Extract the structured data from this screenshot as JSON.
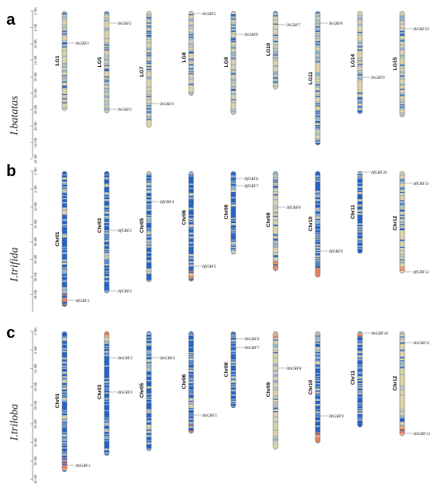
{
  "panels": [
    {
      "letter": "a",
      "species": "I.batatas",
      "scale_ticks": [
        "0 Mb",
        "5 Mb",
        "10 Mb",
        "15 Mb",
        "20 Mb",
        "25 Mb",
        "30 Mb",
        "35 Mb",
        "40 Mb",
        "45 Mb"
      ],
      "chromosomes": [
        {
          "name": "LG1",
          "genes": [
            "IbGRF1"
          ]
        },
        {
          "name": "LG5",
          "genes": [
            "IbGRF2",
            "IbGRF3"
          ]
        },
        {
          "name": "LG7",
          "genes": [
            "IbGRF4"
          ]
        },
        {
          "name": "LG8",
          "genes": [
            "IbGRF5"
          ]
        },
        {
          "name": "LG9",
          "genes": [
            "IbGRF6"
          ]
        },
        {
          "name": "LG10",
          "genes": [
            "IbGRF7"
          ]
        },
        {
          "name": "LG11",
          "genes": [
            "IbGRF8"
          ]
        },
        {
          "name": "LG14",
          "genes": [
            "IbGRF9"
          ]
        },
        {
          "name": "LG15",
          "genes": [
            "IbGRF10"
          ]
        }
      ]
    },
    {
      "letter": "b",
      "species": "I.trifida",
      "scale_ticks": [
        "0 Mb",
        "5 Mb",
        "10 Mb",
        "15 Mb",
        "20 Mb",
        "25 Mb",
        "30 Mb",
        "35 Mb"
      ],
      "chromosomes": [
        {
          "name": "Chr01",
          "genes": [
            "ItfGRF1"
          ]
        },
        {
          "name": "Chr03",
          "genes": [
            "ItfGRF2",
            "ItfGRF3"
          ]
        },
        {
          "name": "Chr05",
          "genes": [
            "ItfGRF4"
          ]
        },
        {
          "name": "Chr06",
          "genes": [
            "ItfGRF5"
          ]
        },
        {
          "name": "Chr08",
          "genes": [
            "ItfGRF6",
            "ItfGRF7"
          ]
        },
        {
          "name": "Chr09",
          "genes": [
            "ItfGRF8"
          ]
        },
        {
          "name": "Chr10",
          "genes": [
            "ItfGRF9"
          ]
        },
        {
          "name": "Chr11",
          "genes": [
            "ItfGRF10"
          ]
        },
        {
          "name": "Chr12",
          "genes": [
            "ItfGRF11",
            "ItfGRF12"
          ]
        }
      ]
    },
    {
      "letter": "c",
      "species": "I.triloba",
      "scale_ticks": [
        "0 Mb",
        "5 Mb",
        "10 Mb",
        "15 Mb",
        "20 Mb",
        "25 Mb",
        "30 Mb",
        "35 Mb",
        "40 Mb"
      ],
      "chromosomes": [
        {
          "name": "Chr01",
          "genes": [
            "ItbGRF1"
          ]
        },
        {
          "name": "Chr03",
          "genes": [
            "ItbGRF2",
            "ItbGRF3"
          ]
        },
        {
          "name": "Chr05",
          "genes": [
            "ItbGRF4"
          ]
        },
        {
          "name": "Chr06",
          "genes": [
            "ItbGRF5"
          ]
        },
        {
          "name": "Chr08",
          "genes": [
            "ItbGRF6",
            "ItbGRF7"
          ]
        },
        {
          "name": "Chr09",
          "genes": [
            "ItbGRF8"
          ]
        },
        {
          "name": "Chr10",
          "genes": [
            "ItbGRF9"
          ]
        },
        {
          "name": "Chr11",
          "genes": [
            "ItbGRF10"
          ]
        },
        {
          "name": "Chr12",
          "genes": [
            "ItbGRF11",
            "ItbGRF12"
          ]
        }
      ]
    }
  ],
  "colors": {
    "density_low": "#dcd3a8",
    "density_mid": "#8fb0cc",
    "density_high": "#1f5fc8",
    "density_hot": "#e8825a",
    "outline": "#6b6b6b",
    "gene_line": "#555555"
  }
}
